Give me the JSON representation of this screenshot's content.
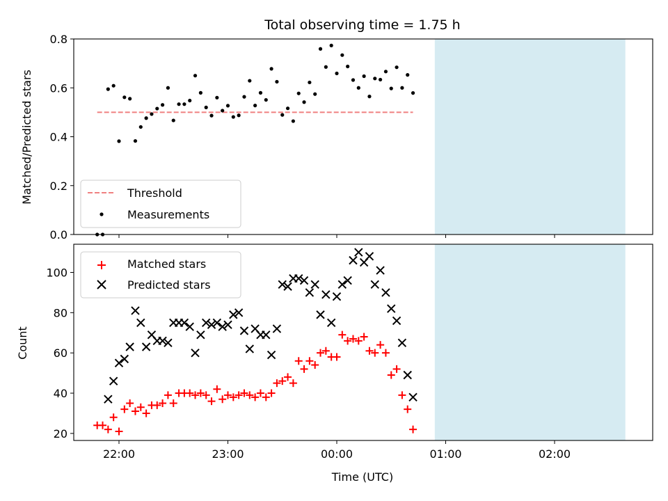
{
  "chart_data": {
    "type": "scatter",
    "title": "Total observing time = 1.75 h",
    "xlabel": "Time (UTC)",
    "x_tick_labels": [
      "22:00",
      "23:00",
      "00:00",
      "01:00",
      "02:00"
    ],
    "highlight_color": "#add8e6",
    "top_panel": {
      "ylabel": "Matched/Predicted stars",
      "ylim": [
        0,
        0.8
      ],
      "y_ticks": [
        "0.0",
        "0.2",
        "0.4",
        "0.6",
        "0.8"
      ],
      "threshold": {
        "name": "Threshold",
        "value": 0.5,
        "color": "#f08080"
      },
      "measurements_name": "Measurements",
      "measurements_color": "#000000"
    },
    "bottom_panel": {
      "ylabel": "Count",
      "ylim": [
        16.5,
        114
      ],
      "y_ticks": [
        "20",
        "40",
        "60",
        "80",
        "100"
      ],
      "matched_series": {
        "name": "Matched stars",
        "color": "#ff0000"
      },
      "predicted_series": {
        "name": "Predicted stars",
        "color": "#000000"
      }
    },
    "matched": [
      24,
      24,
      22,
      28,
      21,
      32,
      35,
      31,
      33,
      30,
      34,
      34,
      35,
      39,
      35,
      40,
      40,
      40,
      39,
      40,
      39,
      36,
      42,
      37,
      39,
      38,
      39,
      40,
      39,
      38,
      40,
      38,
      40,
      45,
      46,
      48,
      45,
      56,
      52,
      56,
      54,
      60,
      61,
      58,
      58,
      69,
      66,
      67,
      66,
      68,
      61,
      60,
      64,
      60,
      49,
      52,
      39,
      32,
      22
    ],
    "predicted": [
      null,
      null,
      37,
      46,
      55,
      57,
      63,
      81,
      75,
      63,
      69,
      66,
      66,
      65,
      75,
      75,
      75,
      73,
      60,
      69,
      75,
      74,
      75,
      73,
      74,
      79,
      80,
      71,
      62,
      72,
      69,
      69,
      59,
      72,
      94,
      93,
      97,
      97,
      96,
      90,
      94,
      79,
      89,
      75,
      88,
      94,
      96,
      106,
      110,
      105,
      108,
      94,
      101,
      90,
      82,
      76,
      65,
      49,
      38
    ]
  }
}
